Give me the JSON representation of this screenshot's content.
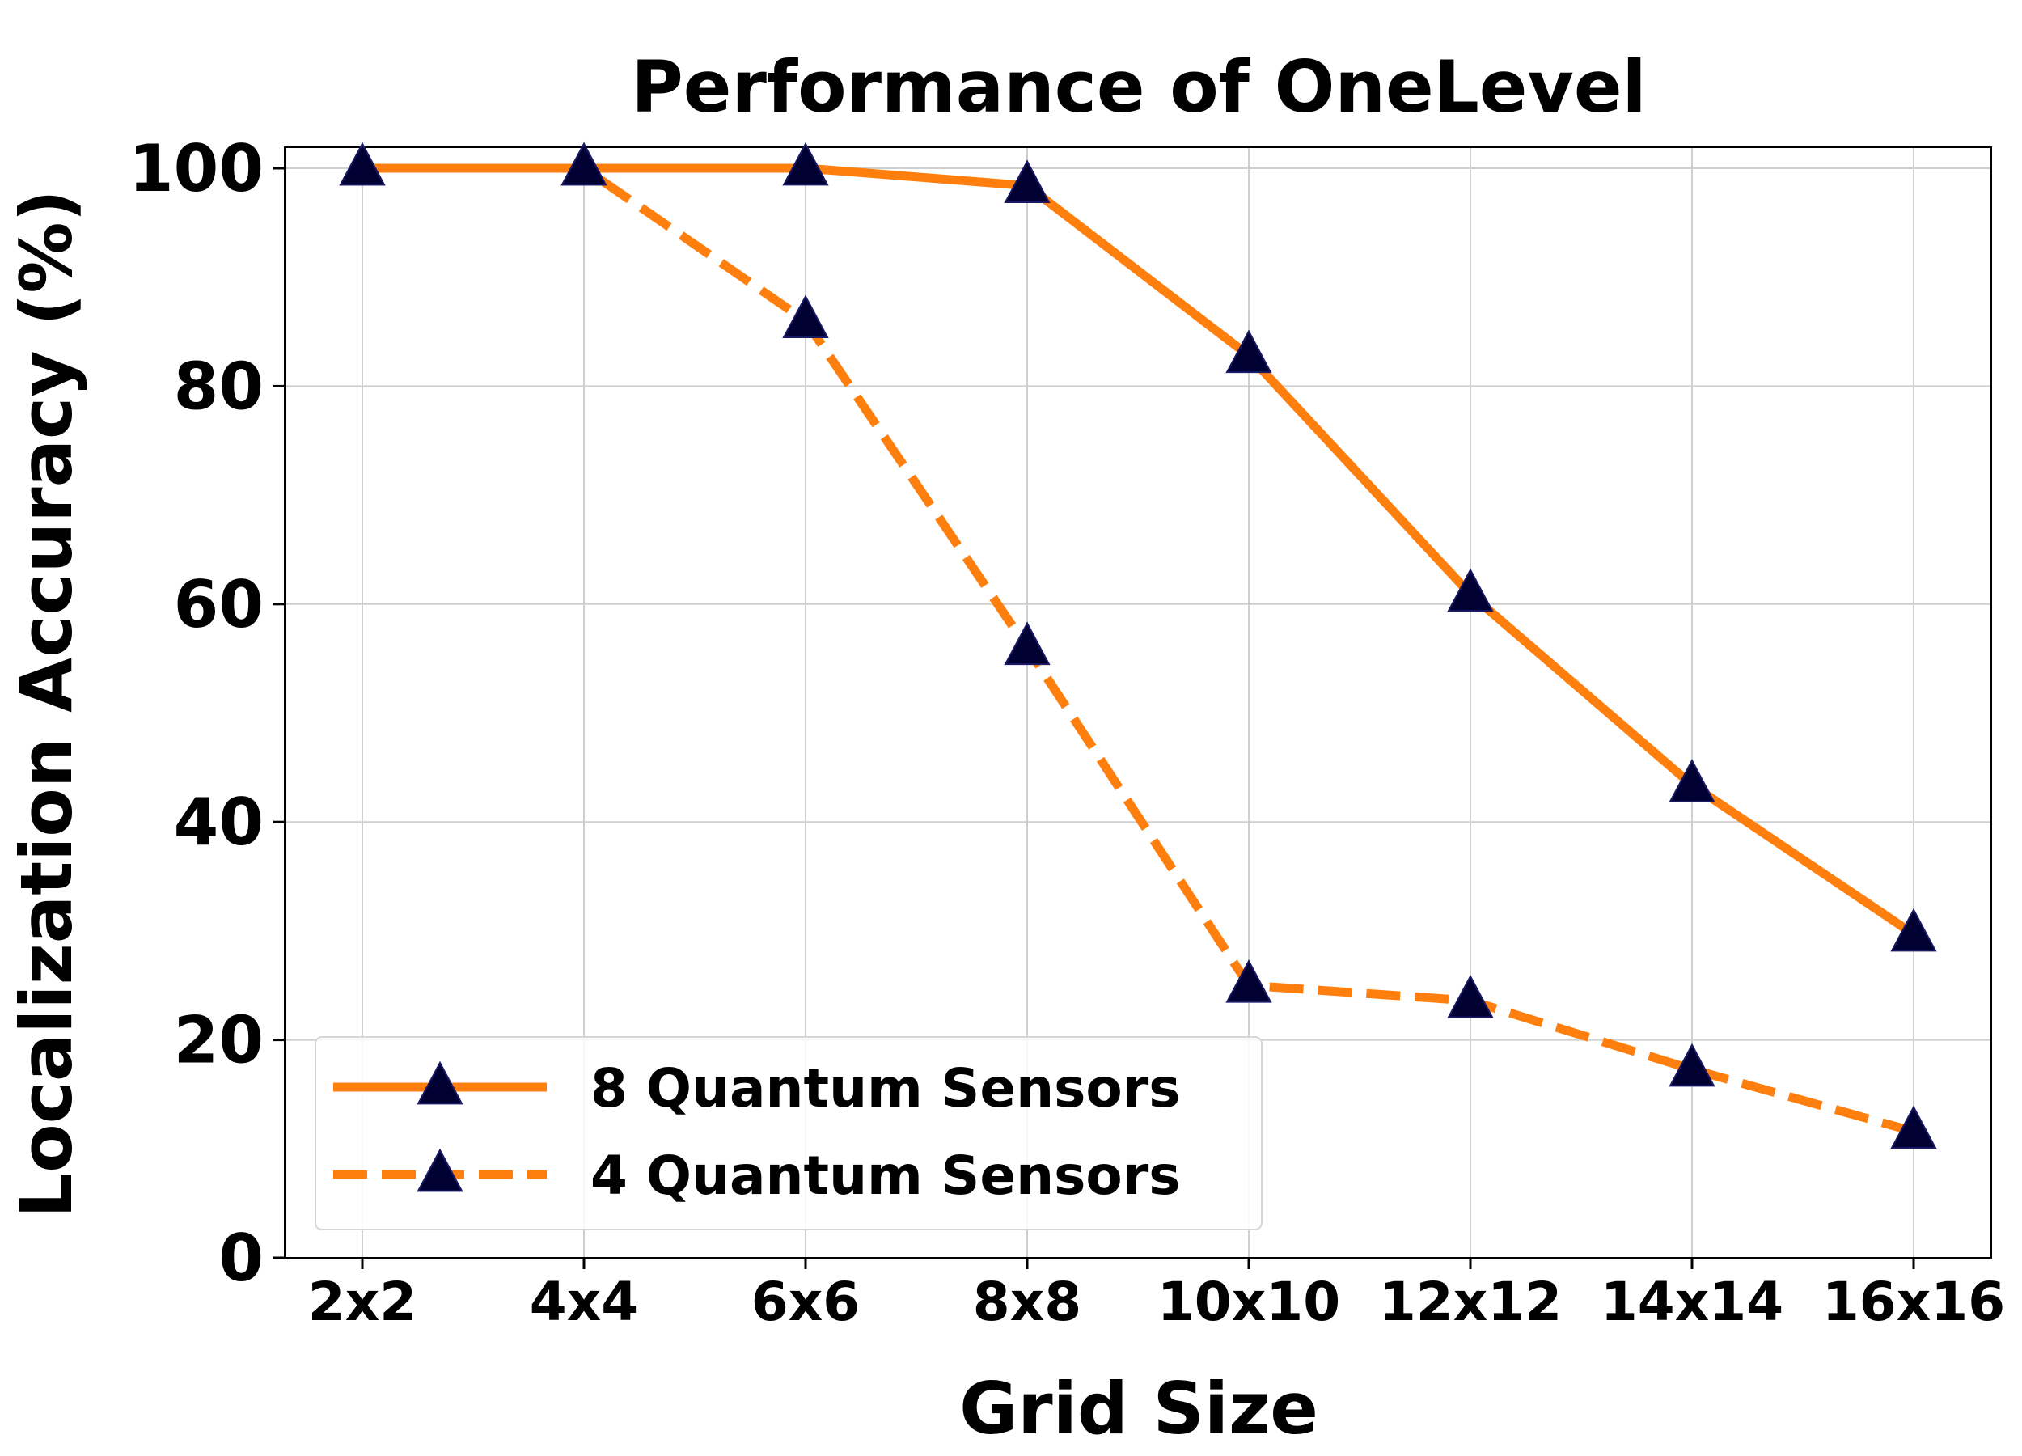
{
  "chart_data": {
    "type": "line",
    "title": "Performance of OneLevel",
    "xlabel": "Grid Size",
    "ylabel": "Localization Accuracy (%)",
    "categories": [
      "2x2",
      "4x4",
      "6x6",
      "8x8",
      "10x10",
      "12x12",
      "14x14",
      "16x16"
    ],
    "ylim": [
      0,
      102
    ],
    "yticks": [
      0,
      20,
      40,
      60,
      80,
      100
    ],
    "grid": true,
    "legend_position": "lower-left",
    "series": [
      {
        "name": "8 Quantum Sensors",
        "values": [
          100,
          100,
          100,
          98.4,
          82.8,
          60.9,
          43.4,
          29.7
        ],
        "color": "#ff7f0e",
        "line_style": "solid",
        "marker": "triangle-up",
        "marker_color": "#000033"
      },
      {
        "name": "4 Quantum Sensors",
        "values": [
          100,
          100,
          86,
          56,
          25,
          23.6,
          17.3,
          11.6
        ],
        "color": "#ff7f0e",
        "line_style": "dashed",
        "marker": "triangle-up",
        "marker_color": "#000033"
      }
    ]
  }
}
